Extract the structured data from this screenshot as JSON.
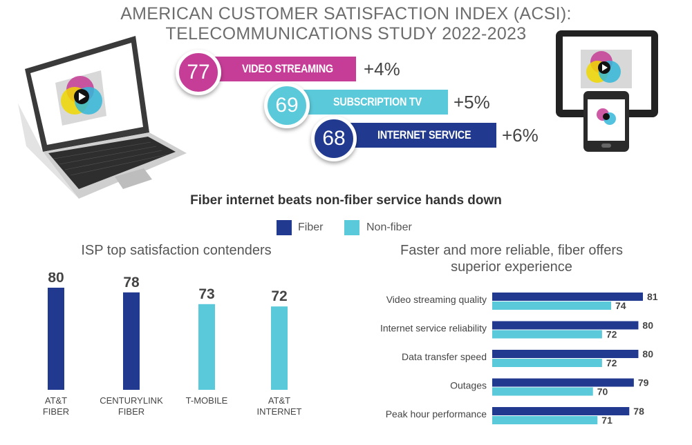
{
  "header": {
    "title_line1": "AMERICAN CUSTOMER SATISFACTION INDEX (ACSI):",
    "title_line2": "TELECOMMUNICATIONS STUDY 2022-2023"
  },
  "industries": [
    {
      "score": "77",
      "label": "VIDEO STREAMING",
      "change": "+4%",
      "color": "#c63d97"
    },
    {
      "score": "69",
      "label": "SUBSCRIPTION TV",
      "change": "+5%",
      "color": "#5ac9d9"
    },
    {
      "score": "68",
      "label": "INTERNET SERVICE",
      "change": "+6%",
      "color": "#213a8f"
    }
  ],
  "subtitle": "Fiber internet beats non-fiber service hands down",
  "legend": [
    {
      "label": "Fiber",
      "color": "#213a8f"
    },
    {
      "label": "Non-fiber",
      "color": "#5ac9d9"
    }
  ],
  "chart_data": [
    {
      "type": "bar",
      "title": "ISP top satisfaction contenders",
      "categories": [
        [
          "AT&T",
          "FIBER"
        ],
        [
          "CENTURYLINK",
          "FIBER"
        ],
        [
          "T-MOBILE"
        ],
        [
          "AT&T",
          "INTERNET"
        ]
      ],
      "values": [
        80,
        78,
        73,
        72
      ],
      "series_type": [
        "Fiber",
        "Fiber",
        "Non-fiber",
        "Non-fiber"
      ],
      "ylim": [
        0,
        85
      ]
    },
    {
      "type": "bar",
      "orientation": "horizontal",
      "title_line1": "Faster and more reliable, fiber offers",
      "title_line2": "superior experience",
      "categories": [
        "Video streaming quality",
        "Internet service reliability",
        "Data transfer speed",
        "Outages",
        "Peak hour performance"
      ],
      "series": [
        {
          "name": "Fiber",
          "values": [
            81,
            80,
            80,
            79,
            78
          ]
        },
        {
          "name": "Non-fiber",
          "values": [
            74,
            72,
            72,
            70,
            71
          ]
        }
      ],
      "xlim": [
        0,
        81
      ]
    }
  ]
}
